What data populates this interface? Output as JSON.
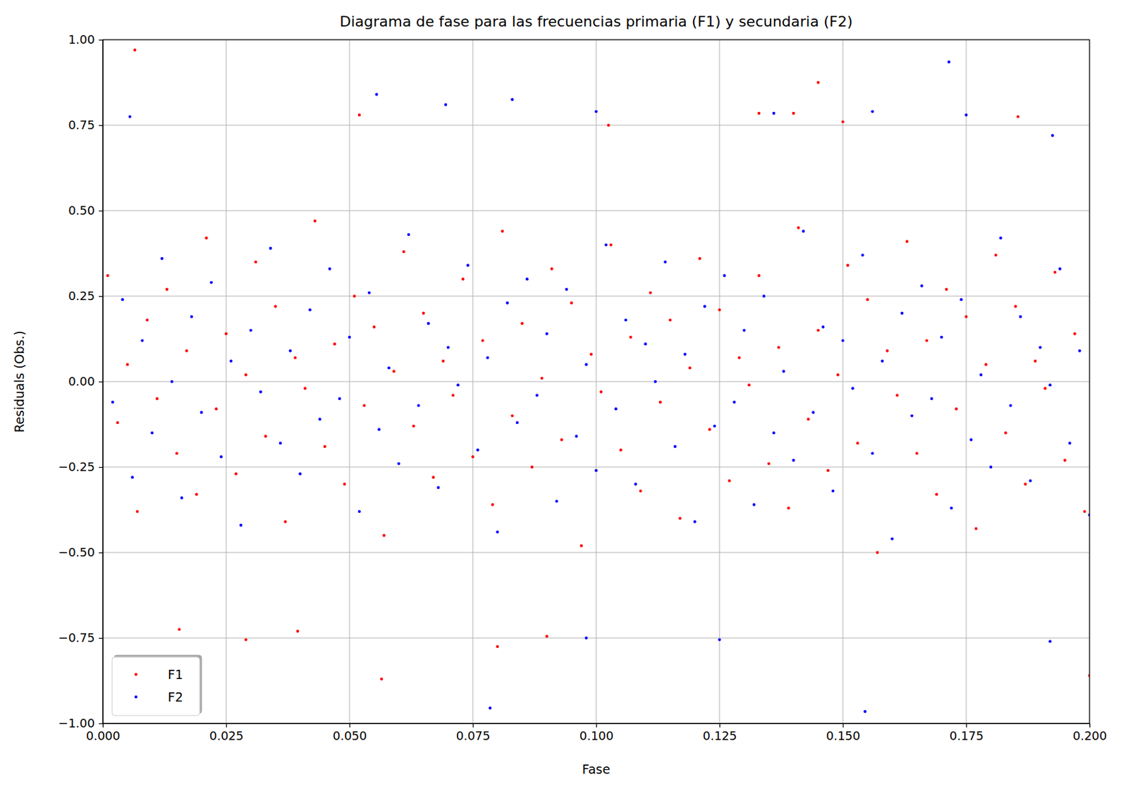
{
  "chart_data": {
    "type": "scatter",
    "title": "Diagrama de fase para las frecuencias primaria (F1) y secundaria (F2)",
    "x_label": "Fase",
    "y_label": "Residuals (Obs.)",
    "xlim": [
      0,
      0.2
    ],
    "ylim": [
      -1,
      1
    ],
    "xticks": [
      {
        "value": 0,
        "label": "0.000"
      },
      0.025,
      {
        "value": 0.05,
        "label": "0.050"
      },
      0.075,
      {
        "value": 0.1,
        "label": "0.100"
      },
      0.125,
      {
        "value": 0.15,
        "label": "0.150"
      },
      0.175,
      {
        "value": 0.2,
        "label": "0.200"
      }
    ],
    "yticks": [
      {
        "value": -1,
        "label": "−1.00"
      },
      {
        "value": -0.75,
        "label": "−0.75"
      },
      {
        "value": -0.5,
        "label": "−0.50"
      },
      {
        "value": -0.25,
        "label": "−0.25"
      },
      {
        "value": 0,
        "label": "0.00"
      },
      {
        "value": 0.25,
        "label": "0.25"
      },
      {
        "value": 0.5,
        "label": "0.50"
      },
      {
        "value": 0.75,
        "label": "0.75"
      },
      {
        "value": 1,
        "label": "1.00"
      }
    ],
    "grid": true,
    "legend": "lower left",
    "series": [
      {
        "name": "F1",
        "color": "#ff0000",
        "marker": "point",
        "x": [
          0.0065,
          0.145,
          0.0565,
          0.2,
          0.08,
          0.029,
          0.1025,
          0.1855,
          0.15,
          0.0155,
          0.0395,
          0.09,
          0.133,
          0.14,
          0.052,
          0.001,
          0.003,
          0.005,
          0.007,
          0.009,
          0.011,
          0.013,
          0.015,
          0.017,
          0.019,
          0.021,
          0.023,
          0.025,
          0.027,
          0.029,
          0.031,
          0.033,
          0.035,
          0.037,
          0.039,
          0.041,
          0.043,
          0.045,
          0.047,
          0.049,
          0.051,
          0.053,
          0.055,
          0.057,
          0.059,
          0.061,
          0.063,
          0.065,
          0.067,
          0.069,
          0.071,
          0.073,
          0.075,
          0.077,
          0.079,
          0.081,
          0.083,
          0.085,
          0.087,
          0.089,
          0.091,
          0.093,
          0.095,
          0.097,
          0.099,
          0.101,
          0.103,
          0.105,
          0.107,
          0.109,
          0.111,
          0.113,
          0.115,
          0.117,
          0.119,
          0.121,
          0.123,
          0.125,
          0.127,
          0.129,
          0.131,
          0.133,
          0.135,
          0.137,
          0.139,
          0.141,
          0.143,
          0.145,
          0.147,
          0.149,
          0.151,
          0.153,
          0.155,
          0.157,
          0.159,
          0.161,
          0.163,
          0.165,
          0.167,
          0.169,
          0.171,
          0.173,
          0.175,
          0.177,
          0.179,
          0.181,
          0.183,
          0.185,
          0.187,
          0.189,
          0.191,
          0.193,
          0.195,
          0.197,
          0.199
        ],
        "values": [
          0.97,
          0.875,
          -0.87,
          -0.86,
          -0.775,
          -0.755,
          0.75,
          0.775,
          0.76,
          -0.725,
          -0.73,
          -0.745,
          0.785,
          0.785,
          0.78,
          0.31,
          -0.12,
          0.05,
          -0.38,
          0.18,
          -0.05,
          0.27,
          -0.21,
          0.09,
          -0.33,
          0.42,
          -0.08,
          0.14,
          -0.27,
          0.02,
          0.35,
          -0.16,
          0.22,
          -0.41,
          0.07,
          -0.02,
          0.47,
          -0.19,
          0.11,
          -0.3,
          0.25,
          -0.07,
          0.16,
          -0.45,
          0.03,
          0.38,
          -0.13,
          0.2,
          -0.28,
          0.06,
          -0.04,
          0.3,
          -0.22,
          0.12,
          -0.36,
          0.44,
          -0.1,
          0.17,
          -0.25,
          0.01,
          0.33,
          -0.17,
          0.23,
          -0.48,
          0.08,
          -0.03,
          0.4,
          -0.2,
          0.13,
          -0.32,
          0.26,
          -0.06,
          0.18,
          -0.4,
          0.04,
          0.36,
          -0.14,
          0.21,
          -0.29,
          0.07,
          -0.01,
          0.31,
          -0.24,
          0.1,
          -0.37,
          0.45,
          -0.11,
          0.15,
          -0.26,
          0.02,
          0.34,
          -0.18,
          0.24,
          -0.5,
          0.09,
          -0.04,
          0.41,
          -0.21,
          0.12,
          -0.33,
          0.27,
          -0.08,
          0.19,
          -0.43,
          0.05,
          0.37,
          -0.15,
          0.22,
          -0.3,
          0.06,
          -0.02,
          0.32,
          -0.23,
          0.14,
          -0.38
        ]
      },
      {
        "name": "F2",
        "color": "#0000ff",
        "marker": "point",
        "x": [
          0.1715,
          0.0055,
          0.0555,
          0.083,
          0.0695,
          0.1,
          0.156,
          0.0785,
          0.1545,
          0.098,
          0.125,
          0.192,
          0.1925,
          0.175,
          0.136,
          0.002,
          0.004,
          0.006,
          0.008,
          0.01,
          0.012,
          0.014,
          0.016,
          0.018,
          0.02,
          0.022,
          0.024,
          0.026,
          0.028,
          0.03,
          0.032,
          0.034,
          0.036,
          0.038,
          0.04,
          0.042,
          0.044,
          0.046,
          0.048,
          0.05,
          0.052,
          0.054,
          0.056,
          0.058,
          0.06,
          0.062,
          0.064,
          0.066,
          0.068,
          0.07,
          0.072,
          0.074,
          0.076,
          0.078,
          0.08,
          0.082,
          0.084,
          0.086,
          0.088,
          0.09,
          0.092,
          0.094,
          0.096,
          0.098,
          0.1,
          0.102,
          0.104,
          0.106,
          0.108,
          0.11,
          0.112,
          0.114,
          0.116,
          0.118,
          0.12,
          0.122,
          0.124,
          0.126,
          0.128,
          0.13,
          0.132,
          0.134,
          0.136,
          0.138,
          0.14,
          0.142,
          0.144,
          0.146,
          0.148,
          0.15,
          0.152,
          0.154,
          0.156,
          0.158,
          0.16,
          0.162,
          0.164,
          0.166,
          0.168,
          0.17,
          0.172,
          0.174,
          0.176,
          0.178,
          0.18,
          0.182,
          0.184,
          0.186,
          0.188,
          0.19,
          0.192,
          0.194,
          0.196,
          0.198,
          0.2
        ],
        "values": [
          0.935,
          0.775,
          0.84,
          0.825,
          0.81,
          0.79,
          0.79,
          -0.955,
          -0.965,
          -0.75,
          -0.755,
          -0.76,
          0.72,
          0.78,
          0.785,
          -0.06,
          0.24,
          -0.28,
          0.12,
          -0.15,
          0.36,
          0.0,
          -0.34,
          0.19,
          -0.09,
          0.29,
          -0.22,
          0.06,
          -0.42,
          0.15,
          -0.03,
          0.39,
          -0.18,
          0.09,
          -0.27,
          0.21,
          -0.11,
          0.33,
          -0.05,
          0.13,
          -0.38,
          0.26,
          -0.14,
          0.04,
          -0.24,
          0.43,
          -0.07,
          0.17,
          -0.31,
          0.1,
          -0.01,
          0.34,
          -0.2,
          0.07,
          -0.44,
          0.23,
          -0.12,
          0.3,
          -0.04,
          0.14,
          -0.35,
          0.27,
          -0.16,
          0.05,
          -0.26,
          0.4,
          -0.08,
          0.18,
          -0.3,
          0.11,
          0.0,
          0.35,
          -0.19,
          0.08,
          -0.41,
          0.22,
          -0.13,
          0.31,
          -0.06,
          0.15,
          -0.36,
          0.25,
          -0.15,
          0.03,
          -0.23,
          0.44,
          -0.09,
          0.16,
          -0.32,
          0.12,
          -0.02,
          0.37,
          -0.21,
          0.06,
          -0.46,
          0.2,
          -0.1,
          0.28,
          -0.05,
          0.13,
          -0.37,
          0.24,
          -0.17,
          0.02,
          -0.25,
          0.42,
          -0.07,
          0.19,
          -0.29,
          0.1,
          -0.01,
          0.33,
          -0.18,
          0.09,
          -0.39
        ]
      }
    ]
  }
}
